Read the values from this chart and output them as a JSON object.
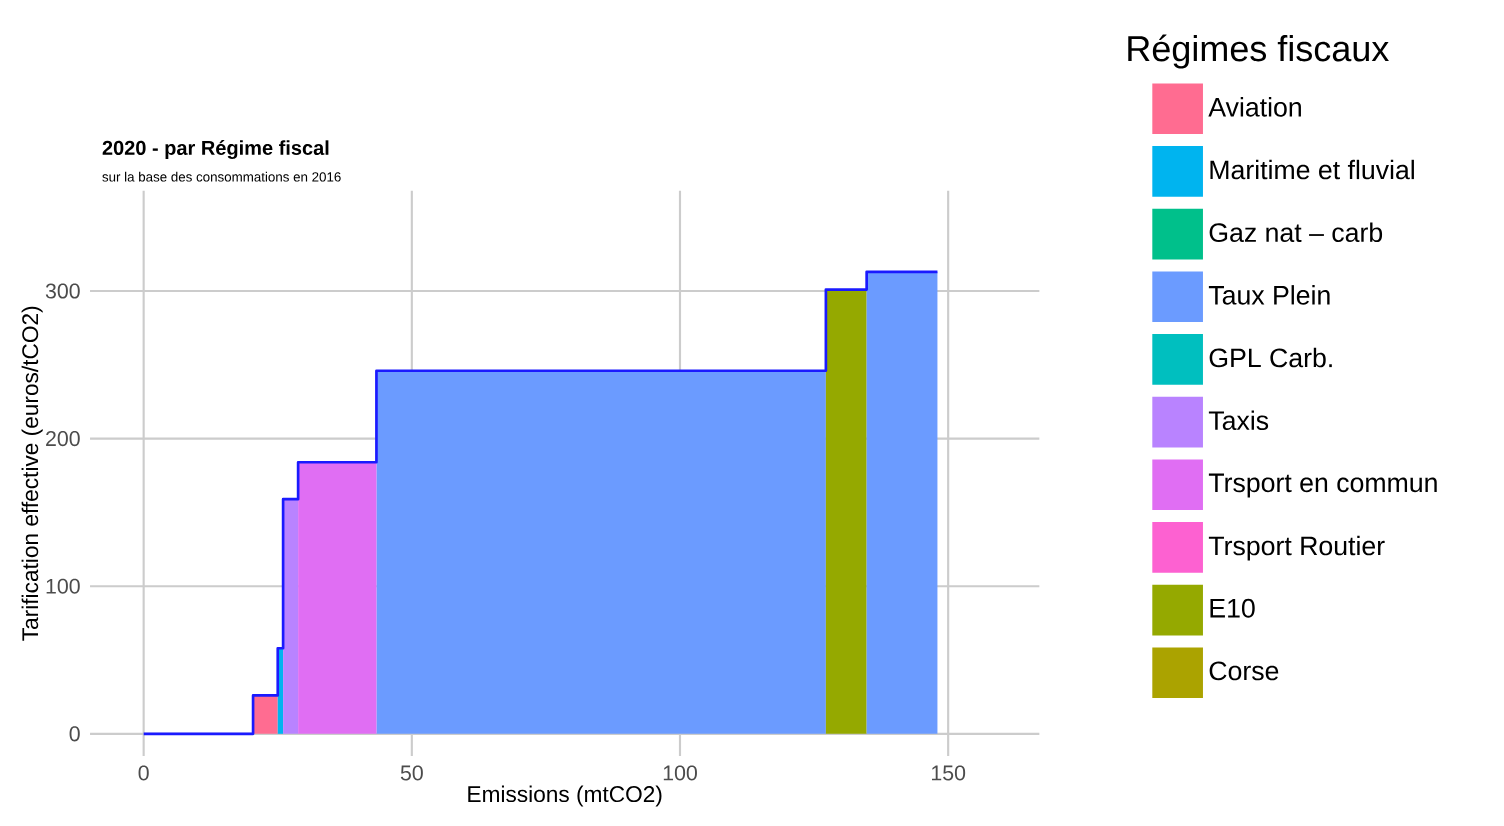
{
  "chart_data": {
    "type": "area",
    "title": "2020 - par Régime fiscal",
    "subtitle": "sur la base des consommations en 2016",
    "xlabel": "Emissions (mtCO2)",
    "ylabel": "Tarification effective (euros/tCO2)",
    "legend_title": "Régimes fiscaux",
    "xlim": [
      -10,
      167
    ],
    "ylim": [
      -15,
      368
    ],
    "xticks": [
      0,
      50,
      100,
      150
    ],
    "yticks": [
      0,
      100,
      200,
      300
    ],
    "grid": true,
    "legend": "right",
    "series": [
      {
        "name": "Aviation",
        "color": "#ff6c91",
        "x": [
          20.4,
          25.0
        ],
        "values": [
          26,
          26
        ]
      },
      {
        "name": "Maritime et fluvial",
        "color": "#00b4ef",
        "x": [
          25.0,
          26.0
        ],
        "values": [
          58,
          58
        ]
      },
      {
        "name": "Gaz nat – carb",
        "color": "#00c08b",
        "values": [
          null
        ]
      },
      {
        "name": "Taux Plein",
        "color": "#6b9bff",
        "x": [
          43.4,
          127.2
        ],
        "values": [
          246,
          246
        ]
      },
      {
        "name": "GPL Carb.",
        "color": "#00bfbf",
        "values": [
          null
        ]
      },
      {
        "name": "Taxis",
        "color": "#b983ff",
        "x": [
          26.0,
          28.8
        ],
        "values": [
          159,
          159
        ]
      },
      {
        "name": "Trsport en commun",
        "color": "#e06ef3",
        "x": [
          28.8,
          43.4
        ],
        "values": [
          184,
          184
        ]
      },
      {
        "name": "Trsport Routier",
        "color": "#fd61d1",
        "values": [
          null
        ]
      },
      {
        "name": "E10",
        "color": "#95a900",
        "x": [
          127.2,
          134.8
        ],
        "values": [
          301,
          301
        ]
      },
      {
        "name": "Corse",
        "color": "#aba300",
        "values": [
          null
        ]
      },
      {
        "color": "#6b9bff",
        "x": [
          134.8,
          148.0
        ],
        "values": [
          313,
          313
        ]
      },
      {
        "type": "step",
        "color": "#1a1aff",
        "x": [
          0,
          20.4,
          25.0,
          26.0,
          28.8,
          43.4,
          127.2,
          134.8,
          148.0
        ],
        "values": [
          0,
          26,
          58,
          159,
          184,
          246,
          301,
          313,
          313
        ]
      }
    ]
  }
}
